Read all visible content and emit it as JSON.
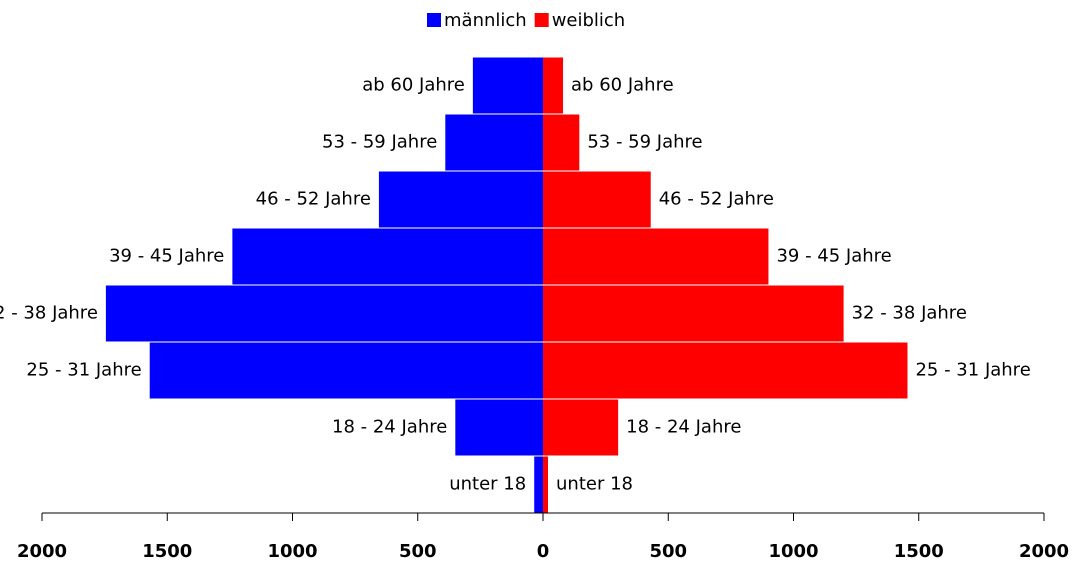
{
  "chart_data": {
    "type": "pyramid",
    "categories": [
      "unter 18",
      "18 - 24 Jahre",
      "25 - 31 Jahre",
      "32 - 38 Jahre",
      "39 - 45 Jahre",
      "46 - 52 Jahre",
      "53 - 59 Jahre",
      "ab 60 Jahre"
    ],
    "series": [
      {
        "name": "männlich",
        "color": "#0000ff",
        "side": "left",
        "values": [
          35,
          350,
          1570,
          1745,
          1240,
          655,
          390,
          280
        ]
      },
      {
        "name": "weiblich",
        "color": "#ff0000",
        "side": "right",
        "values": [
          20,
          300,
          1455,
          1200,
          900,
          430,
          145,
          80
        ]
      }
    ],
    "xlim": [
      -2000,
      2000
    ],
    "xticks": [
      {
        "value": -2000,
        "label": "2000"
      },
      {
        "value": -1500,
        "label": "1500"
      },
      {
        "value": -1000,
        "label": "1000"
      },
      {
        "value": -500,
        "label": "500"
      },
      0,
      500,
      1000,
      1500,
      2000
    ],
    "legend": "top"
  }
}
